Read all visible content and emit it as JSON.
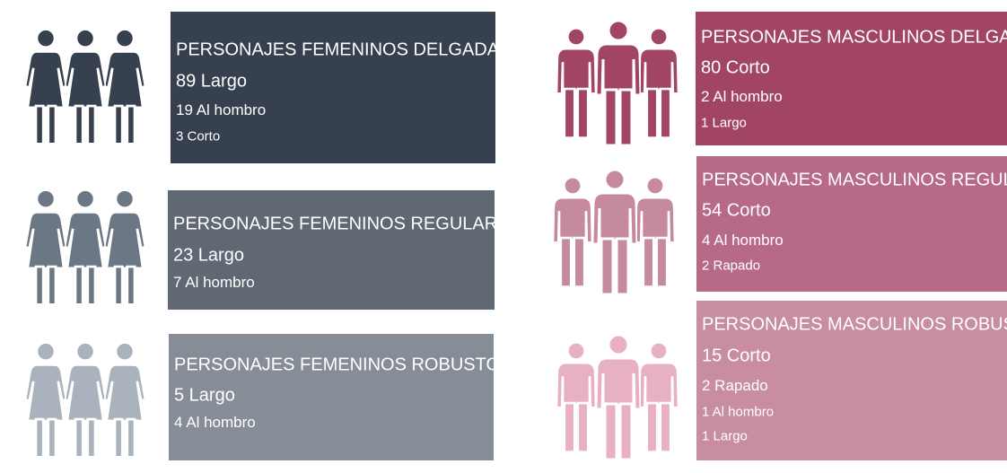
{
  "panels": [
    {
      "title": "PERSONAJES FEMENINOS DELGADAS",
      "lines": [
        "89 Largo",
        "19 Al hombro",
        "3 Corto"
      ]
    },
    {
      "title": "PERSONAJES FEMENINOS REGULARES",
      "lines": [
        "23 Largo",
        "7 Al hombro"
      ]
    },
    {
      "title": "PERSONAJES FEMENINOS ROBUSTOS",
      "lines": [
        "5 Largo",
        "4 Al hombro"
      ]
    },
    {
      "title": "PERSONAJES MASCULINOS DELGADOS",
      "lines": [
        "80 Corto",
        "2 Al hombro",
        "1 Largo"
      ]
    },
    {
      "title": "PERSONAJES MASCULINOS REGULARES",
      "lines": [
        "54 Corto",
        "4 Al hombro",
        "2 Rapado"
      ]
    },
    {
      "title": "PERSONAJES MASCULINOS ROBUSTOS",
      "lines": [
        "15 Corto",
        "2 Rapado",
        "1 Al hombro",
        "1 Largo"
      ]
    }
  ]
}
